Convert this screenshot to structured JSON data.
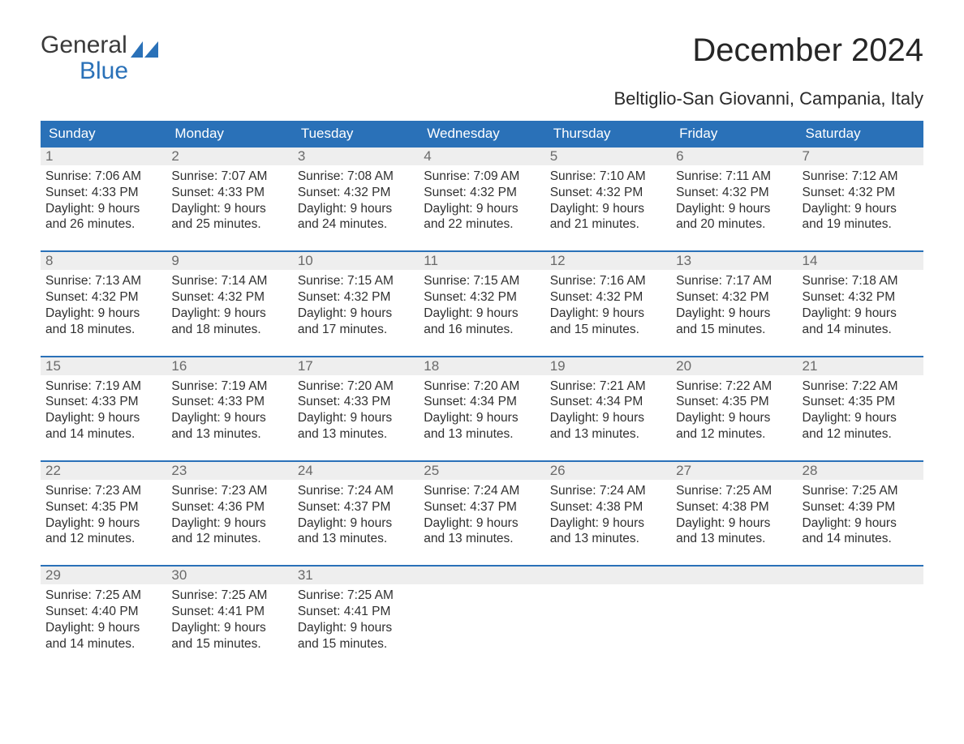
{
  "logo": {
    "word1": "General",
    "word2": "Blue",
    "icon_color": "#2a71b8",
    "text_color": "#3a3a3a"
  },
  "title": "December 2024",
  "subtitle": "Beltiglio-San Giovanni, Campania, Italy",
  "colors": {
    "header_bg": "#2a71b8",
    "header_text": "#ffffff",
    "daynum_bg": "#eeeeee",
    "daynum_text": "#6a6a6a",
    "body_text": "#303030",
    "week_divider": "#2a71b8",
    "background": "#ffffff"
  },
  "day_headers": [
    "Sunday",
    "Monday",
    "Tuesday",
    "Wednesday",
    "Thursday",
    "Friday",
    "Saturday"
  ],
  "weeks": [
    [
      {
        "n": "1",
        "sr": "Sunrise: 7:06 AM",
        "ss": "Sunset: 4:33 PM",
        "d1": "Daylight: 9 hours",
        "d2": "and 26 minutes."
      },
      {
        "n": "2",
        "sr": "Sunrise: 7:07 AM",
        "ss": "Sunset: 4:33 PM",
        "d1": "Daylight: 9 hours",
        "d2": "and 25 minutes."
      },
      {
        "n": "3",
        "sr": "Sunrise: 7:08 AM",
        "ss": "Sunset: 4:32 PM",
        "d1": "Daylight: 9 hours",
        "d2": "and 24 minutes."
      },
      {
        "n": "4",
        "sr": "Sunrise: 7:09 AM",
        "ss": "Sunset: 4:32 PM",
        "d1": "Daylight: 9 hours",
        "d2": "and 22 minutes."
      },
      {
        "n": "5",
        "sr": "Sunrise: 7:10 AM",
        "ss": "Sunset: 4:32 PM",
        "d1": "Daylight: 9 hours",
        "d2": "and 21 minutes."
      },
      {
        "n": "6",
        "sr": "Sunrise: 7:11 AM",
        "ss": "Sunset: 4:32 PM",
        "d1": "Daylight: 9 hours",
        "d2": "and 20 minutes."
      },
      {
        "n": "7",
        "sr": "Sunrise: 7:12 AM",
        "ss": "Sunset: 4:32 PM",
        "d1": "Daylight: 9 hours",
        "d2": "and 19 minutes."
      }
    ],
    [
      {
        "n": "8",
        "sr": "Sunrise: 7:13 AM",
        "ss": "Sunset: 4:32 PM",
        "d1": "Daylight: 9 hours",
        "d2": "and 18 minutes."
      },
      {
        "n": "9",
        "sr": "Sunrise: 7:14 AM",
        "ss": "Sunset: 4:32 PM",
        "d1": "Daylight: 9 hours",
        "d2": "and 18 minutes."
      },
      {
        "n": "10",
        "sr": "Sunrise: 7:15 AM",
        "ss": "Sunset: 4:32 PM",
        "d1": "Daylight: 9 hours",
        "d2": "and 17 minutes."
      },
      {
        "n": "11",
        "sr": "Sunrise: 7:15 AM",
        "ss": "Sunset: 4:32 PM",
        "d1": "Daylight: 9 hours",
        "d2": "and 16 minutes."
      },
      {
        "n": "12",
        "sr": "Sunrise: 7:16 AM",
        "ss": "Sunset: 4:32 PM",
        "d1": "Daylight: 9 hours",
        "d2": "and 15 minutes."
      },
      {
        "n": "13",
        "sr": "Sunrise: 7:17 AM",
        "ss": "Sunset: 4:32 PM",
        "d1": "Daylight: 9 hours",
        "d2": "and 15 minutes."
      },
      {
        "n": "14",
        "sr": "Sunrise: 7:18 AM",
        "ss": "Sunset: 4:32 PM",
        "d1": "Daylight: 9 hours",
        "d2": "and 14 minutes."
      }
    ],
    [
      {
        "n": "15",
        "sr": "Sunrise: 7:19 AM",
        "ss": "Sunset: 4:33 PM",
        "d1": "Daylight: 9 hours",
        "d2": "and 14 minutes."
      },
      {
        "n": "16",
        "sr": "Sunrise: 7:19 AM",
        "ss": "Sunset: 4:33 PM",
        "d1": "Daylight: 9 hours",
        "d2": "and 13 minutes."
      },
      {
        "n": "17",
        "sr": "Sunrise: 7:20 AM",
        "ss": "Sunset: 4:33 PM",
        "d1": "Daylight: 9 hours",
        "d2": "and 13 minutes."
      },
      {
        "n": "18",
        "sr": "Sunrise: 7:20 AM",
        "ss": "Sunset: 4:34 PM",
        "d1": "Daylight: 9 hours",
        "d2": "and 13 minutes."
      },
      {
        "n": "19",
        "sr": "Sunrise: 7:21 AM",
        "ss": "Sunset: 4:34 PM",
        "d1": "Daylight: 9 hours",
        "d2": "and 13 minutes."
      },
      {
        "n": "20",
        "sr": "Sunrise: 7:22 AM",
        "ss": "Sunset: 4:35 PM",
        "d1": "Daylight: 9 hours",
        "d2": "and 12 minutes."
      },
      {
        "n": "21",
        "sr": "Sunrise: 7:22 AM",
        "ss": "Sunset: 4:35 PM",
        "d1": "Daylight: 9 hours",
        "d2": "and 12 minutes."
      }
    ],
    [
      {
        "n": "22",
        "sr": "Sunrise: 7:23 AM",
        "ss": "Sunset: 4:35 PM",
        "d1": "Daylight: 9 hours",
        "d2": "and 12 minutes."
      },
      {
        "n": "23",
        "sr": "Sunrise: 7:23 AM",
        "ss": "Sunset: 4:36 PM",
        "d1": "Daylight: 9 hours",
        "d2": "and 12 minutes."
      },
      {
        "n": "24",
        "sr": "Sunrise: 7:24 AM",
        "ss": "Sunset: 4:37 PM",
        "d1": "Daylight: 9 hours",
        "d2": "and 13 minutes."
      },
      {
        "n": "25",
        "sr": "Sunrise: 7:24 AM",
        "ss": "Sunset: 4:37 PM",
        "d1": "Daylight: 9 hours",
        "d2": "and 13 minutes."
      },
      {
        "n": "26",
        "sr": "Sunrise: 7:24 AM",
        "ss": "Sunset: 4:38 PM",
        "d1": "Daylight: 9 hours",
        "d2": "and 13 minutes."
      },
      {
        "n": "27",
        "sr": "Sunrise: 7:25 AM",
        "ss": "Sunset: 4:38 PM",
        "d1": "Daylight: 9 hours",
        "d2": "and 13 minutes."
      },
      {
        "n": "28",
        "sr": "Sunrise: 7:25 AM",
        "ss": "Sunset: 4:39 PM",
        "d1": "Daylight: 9 hours",
        "d2": "and 14 minutes."
      }
    ],
    [
      {
        "n": "29",
        "sr": "Sunrise: 7:25 AM",
        "ss": "Sunset: 4:40 PM",
        "d1": "Daylight: 9 hours",
        "d2": "and 14 minutes."
      },
      {
        "n": "30",
        "sr": "Sunrise: 7:25 AM",
        "ss": "Sunset: 4:41 PM",
        "d1": "Daylight: 9 hours",
        "d2": "and 15 minutes."
      },
      {
        "n": "31",
        "sr": "Sunrise: 7:25 AM",
        "ss": "Sunset: 4:41 PM",
        "d1": "Daylight: 9 hours",
        "d2": "and 15 minutes."
      },
      {
        "empty": true
      },
      {
        "empty": true
      },
      {
        "empty": true
      },
      {
        "empty": true
      }
    ]
  ]
}
